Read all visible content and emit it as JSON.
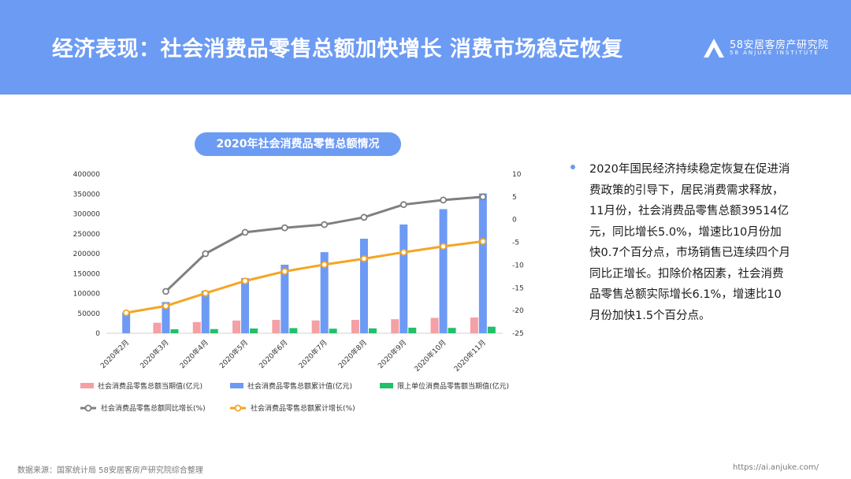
{
  "header": {
    "title": "经济表现：社会消费品零售总额加快增长 消费市场稳定恢复",
    "logo_main": "58安居客房产研究院",
    "logo_sub": "58 ANJUKE  INSTITUTE"
  },
  "colors": {
    "header_bg": "#6c9bf3",
    "bar_monthly": "#f4a0a4",
    "bar_cumulative": "#6d9af5",
    "bar_above_scale": "#21c06a",
    "line_yoy": "#7f7f7f",
    "line_cum_growth": "#f5a524"
  },
  "chart_data": {
    "type": "bar",
    "title": "2020年社会消费品零售总额情况",
    "categories": [
      "2020年2月",
      "2020年3月",
      "2020年4月",
      "2020年5月",
      "2020年6月",
      "2020年7月",
      "2020年8月",
      "2020年9月",
      "2020年10月",
      "2020年11月"
    ],
    "left_axis": {
      "ylim": [
        0,
        400000
      ],
      "ticks": [
        0,
        50000,
        100000,
        150000,
        200000,
        250000,
        300000,
        350000,
        400000
      ]
    },
    "right_axis": {
      "ylim": [
        -25,
        10
      ],
      "ticks": [
        10,
        5,
        0,
        -5,
        -10,
        -15,
        -20,
        -25
      ]
    },
    "series": [
      {
        "name": "社会消费品零售总额当期值(亿元)",
        "kind": "bar",
        "axis": "left",
        "values": [
          null,
          26450,
          28178,
          31973,
          33527,
          32203,
          33571,
          35295,
          38576,
          39514
        ]
      },
      {
        "name": "社会消费品零售总额累计值(亿元)",
        "kind": "bar",
        "axis": "left",
        "values": [
          52130,
          78580,
          106758,
          138730,
          172256,
          203793,
          237650,
          273324,
          311949,
          351463
        ]
      },
      {
        "name": "限上单位消费品零售额当期值(亿元)",
        "kind": "bar",
        "axis": "left",
        "values": [
          null,
          10000,
          10500,
          12000,
          13000,
          11500,
          12300,
          14000,
          13500,
          16500
        ]
      },
      {
        "name": "社会消费品零售总额同比增长(%)",
        "kind": "line",
        "axis": "right",
        "values": [
          null,
          -15.8,
          -7.5,
          -2.8,
          -1.8,
          -1.1,
          0.5,
          3.3,
          4.3,
          5.0
        ]
      },
      {
        "name": "社会消费品零售总额累计增长(%)",
        "kind": "line",
        "axis": "right",
        "values": [
          -20.5,
          -19.0,
          -16.2,
          -13.5,
          -11.4,
          -9.9,
          -8.6,
          -7.2,
          -5.9,
          -4.8
        ]
      }
    ]
  },
  "text": {
    "paragraph": "2020年国民经济持续稳定恢复在促进消费政策的引导下，居民消费需求释放，11月份，社会消费品零售总额39514亿元，同比增长5.0%，增速比10月份加快0.7个百分点，市场销售已连续四个月同比正增长。扣除价格因素，社会消费品零售总额实际增长6.1%，增速比10月份加快1.5个百分点。"
  },
  "footer": {
    "source": "数据来源：国家统计局 58安居客房产研究院综合整理",
    "url": "https://ai.anjuke.com/"
  }
}
